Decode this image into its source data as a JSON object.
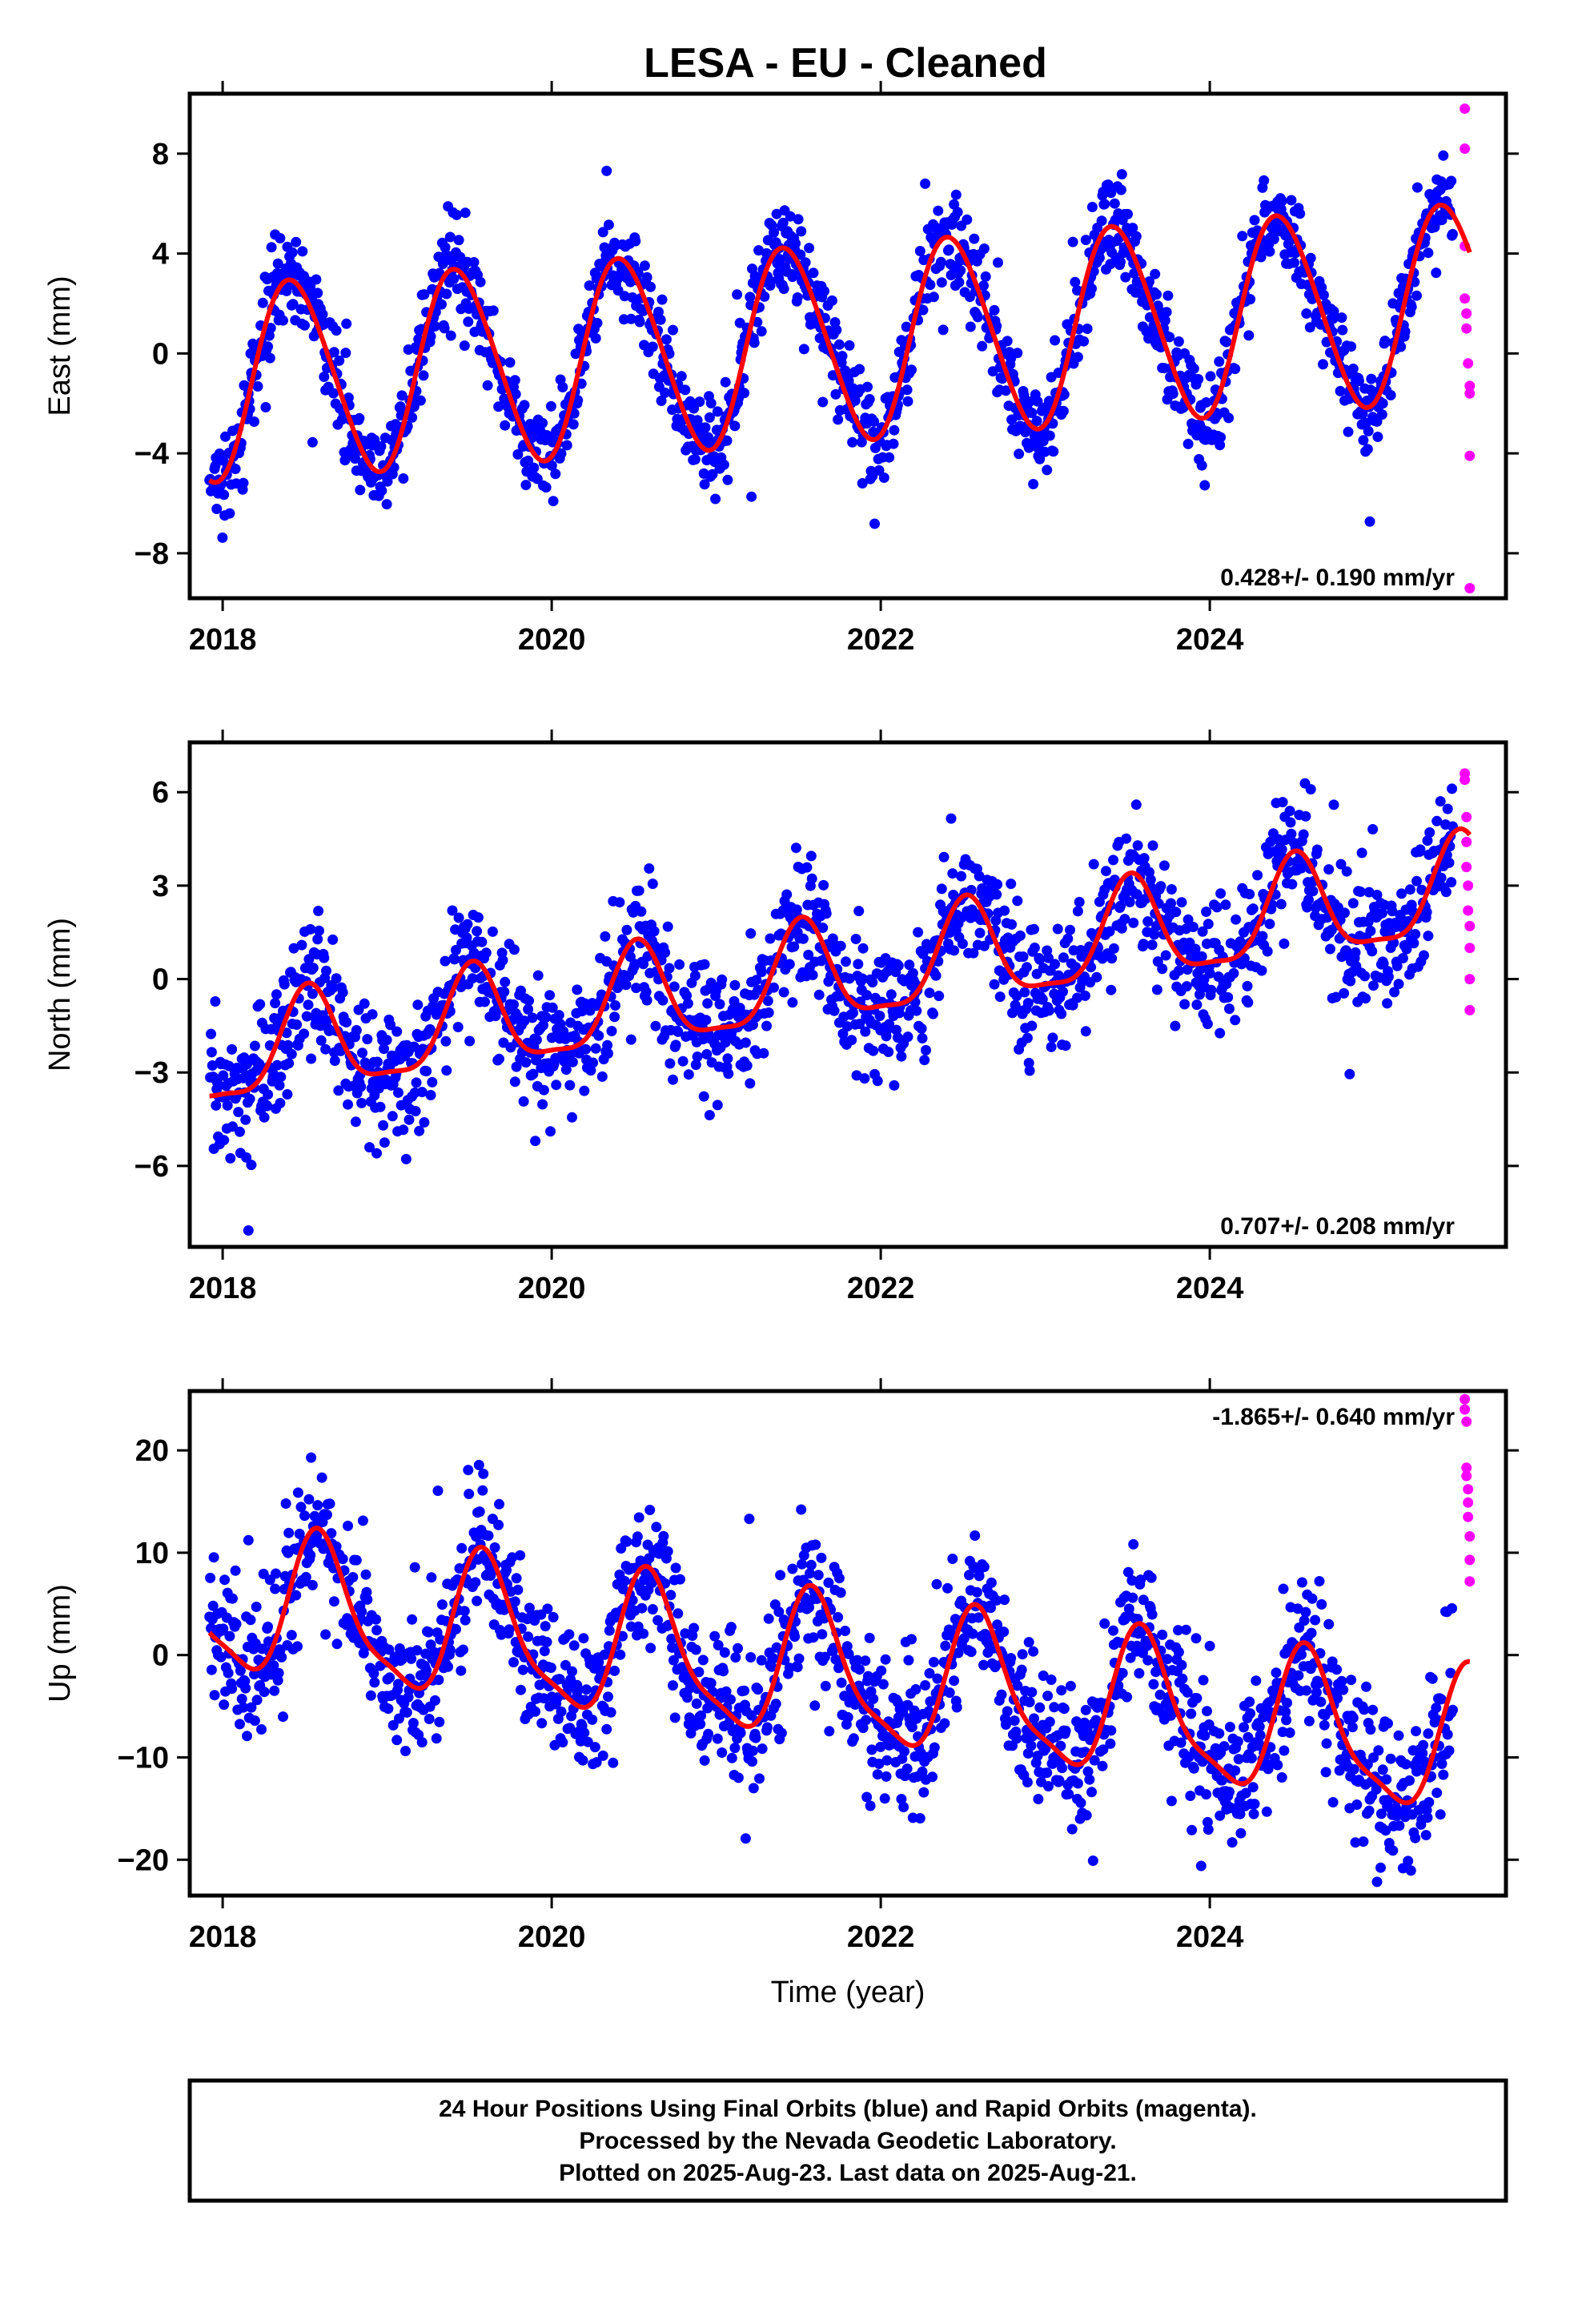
{
  "chart_data": [
    {
      "type": "scatter",
      "title": "LESA  - EU - Cleaned",
      "ylabel": "East (mm)",
      "xlabel": "",
      "xlim": [
        2017.8,
        2025.8
      ],
      "ylim": [
        -9.8,
        10.4
      ],
      "xticks": [
        2018,
        2020,
        2022,
        2024
      ],
      "yticks": [
        -8,
        -4,
        0,
        4,
        8
      ],
      "ytick_labels": [
        "−8",
        "−4",
        "0",
        "4",
        "8"
      ],
      "rate_text": "0.428+/- 0.190 mm/yr",
      "rate_position": "bottom-right",
      "model": {
        "start": 2017.92,
        "end": 2025.58,
        "offset": -1.2,
        "slope": 0.428,
        "annual_amp": 3.9,
        "annual_phase": 2018.43,
        "semiannual_amp": 0.35,
        "semiannual_phase": 2018.3
      },
      "noise_std": 0.95,
      "series": [
        {
          "name": "Final Orbits",
          "color": "#0000ff",
          "x_start": 2017.92,
          "x_end": 2025.48,
          "step_days": 1.6
        },
        {
          "name": "Rapid Orbits",
          "color": "#ff00ff",
          "points": [
            [
              2025.55,
              9.8
            ],
            [
              2025.55,
              8.2
            ],
            [
              2025.55,
              4.3
            ],
            [
              2025.55,
              2.2
            ],
            [
              2025.56,
              1.6
            ],
            [
              2025.56,
              1.0
            ],
            [
              2025.57,
              -0.4
            ],
            [
              2025.58,
              -1.3
            ],
            [
              2025.58,
              -1.6
            ],
            [
              2025.58,
              -4.1
            ],
            [
              2025.58,
              -9.4
            ]
          ]
        },
        {
          "name": "model",
          "color": "#ff0000",
          "line": true
        }
      ]
    },
    {
      "type": "scatter",
      "title": "",
      "ylabel": "North (mm)",
      "xlabel": "",
      "xlim": [
        2017.8,
        2025.8
      ],
      "ylim": [
        -8.6,
        7.6
      ],
      "xticks": [
        2018,
        2020,
        2022,
        2024
      ],
      "yticks": [
        -6,
        -3,
        0,
        3,
        6
      ],
      "ytick_labels": [
        "−6",
        "−3",
        "0",
        "3",
        "6"
      ],
      "rate_text": "0.707+/- 0.208 mm/yr",
      "rate_position": "bottom-right",
      "model": {
        "start": 2017.92,
        "end": 2025.58,
        "offset": -2.6,
        "slope": 0.707,
        "annual_amp": 1.6,
        "annual_phase": 2018.52,
        "semiannual_amp": 0.45,
        "semiannual_phase": 2018.52
      },
      "noise_std": 1.05,
      "series": [
        {
          "name": "Final Orbits",
          "color": "#0000ff",
          "x_start": 2017.92,
          "x_end": 2025.48,
          "step_days": 1.6
        },
        {
          "name": "Rapid Orbits",
          "color": "#ff00ff",
          "points": [
            [
              2025.55,
              6.6
            ],
            [
              2025.55,
              6.4
            ],
            [
              2025.56,
              5.2
            ],
            [
              2025.56,
              4.4
            ],
            [
              2025.56,
              3.6
            ],
            [
              2025.57,
              3.0
            ],
            [
              2025.57,
              2.2
            ],
            [
              2025.58,
              1.7
            ],
            [
              2025.58,
              1.0
            ],
            [
              2025.58,
              0.0
            ],
            [
              2025.58,
              -1.0
            ]
          ]
        },
        {
          "name": "model",
          "color": "#ff0000",
          "line": true
        }
      ]
    },
    {
      "type": "scatter",
      "title": "",
      "ylabel": "Up (mm)",
      "xlabel": "Time (year)",
      "xlim": [
        2017.8,
        2025.8
      ],
      "ylim": [
        -23.5,
        25.8
      ],
      "xticks": [
        2018,
        2020,
        2022,
        2024
      ],
      "yticks": [
        -20,
        -10,
        0,
        10,
        20
      ],
      "ytick_labels": [
        "−20",
        "−10",
        "0",
        "10",
        "20"
      ],
      "rate_text": "-1.865+/- 0.640 mm/yr",
      "rate_position": "top-right",
      "model": {
        "start": 2017.92,
        "end": 2025.58,
        "offset": 5.2,
        "slope": -1.865,
        "annual_amp": 6.8,
        "annual_phase": 2018.6,
        "semiannual_amp": 1.8,
        "semiannual_phase": 2018.55
      },
      "noise_std": 3.6,
      "series": [
        {
          "name": "Final Orbits",
          "color": "#0000ff",
          "x_start": 2017.92,
          "x_end": 2025.48,
          "step_days": 1.6
        },
        {
          "name": "Rapid Orbits",
          "color": "#ff00ff",
          "points": [
            [
              2025.55,
              25.0
            ],
            [
              2025.55,
              24.0
            ],
            [
              2025.56,
              22.8
            ],
            [
              2025.56,
              18.3
            ],
            [
              2025.56,
              17.5
            ],
            [
              2025.57,
              16.2
            ],
            [
              2025.57,
              14.9
            ],
            [
              2025.57,
              13.5
            ],
            [
              2025.58,
              11.6
            ],
            [
              2025.58,
              9.3
            ],
            [
              2025.58,
              7.2
            ]
          ]
        },
        {
          "name": "model",
          "color": "#ff0000",
          "line": true
        }
      ]
    }
  ],
  "footer": {
    "line1": "24 Hour Positions Using Final Orbits (blue) and Rapid Orbits (magenta).",
    "line2": "Processed by the Nevada Geodetic Laboratory.",
    "line3": "Plotted on 2025-Aug-23. Last data on 2025-Aug-21."
  }
}
